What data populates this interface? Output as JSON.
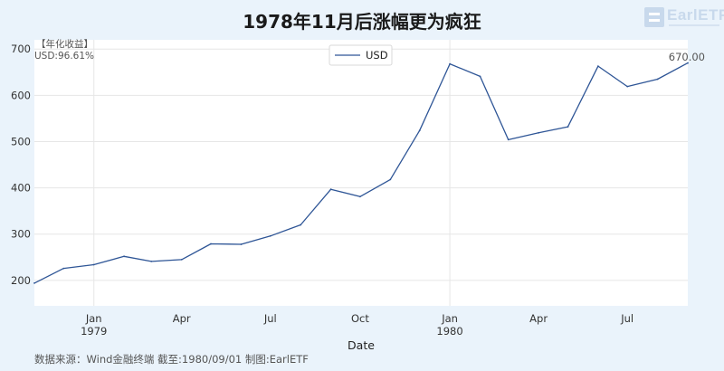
{
  "title": "1978年11月后涨幅更为疯狂",
  "logo_text": "EarlETF",
  "source_note": "数据来源：Wind金融终端 截至:1980/09/01 制图:EarlETF",
  "colors": {
    "line": "#2e5596",
    "background": "#eaf3fb",
    "plot_bg": "#ffffff"
  },
  "chart_data": {
    "type": "line",
    "title": "1978年11月后涨幅更为疯狂",
    "xlabel": "Date",
    "ylabel": "",
    "ylim": [
      145,
      720
    ],
    "yticks": [
      200,
      300,
      400,
      500,
      600,
      700
    ],
    "xlim": [
      "1978-11-01",
      "1980-09-01"
    ],
    "xticks": [
      {
        "date": "1979-01-01",
        "label": "Jan",
        "sublabel": "1979"
      },
      {
        "date": "1979-04-01",
        "label": "Apr",
        "sublabel": ""
      },
      {
        "date": "1979-07-01",
        "label": "Jul",
        "sublabel": ""
      },
      {
        "date": "1979-10-01",
        "label": "Oct",
        "sublabel": ""
      },
      {
        "date": "1980-01-01",
        "label": "Jan",
        "sublabel": "1980"
      },
      {
        "date": "1980-04-01",
        "label": "Apr",
        "sublabel": ""
      },
      {
        "date": "1980-07-01",
        "label": "Jul",
        "sublabel": ""
      }
    ],
    "grid": true,
    "legend": "top-center",
    "annotation_box": {
      "line1": "【年化收益】",
      "line2": "USD:96.61%"
    },
    "end_label": "670.00",
    "series": [
      {
        "name": "USD",
        "x": [
          "1978-11-01",
          "1978-12-01",
          "1979-01-01",
          "1979-02-01",
          "1979-03-01",
          "1979-04-01",
          "1979-05-01",
          "1979-06-01",
          "1979-07-01",
          "1979-08-01",
          "1979-09-01",
          "1979-10-01",
          "1979-11-01",
          "1979-12-01",
          "1980-01-01",
          "1980-02-01",
          "1980-03-01",
          "1980-04-01",
          "1980-05-01",
          "1980-06-01",
          "1980-07-01",
          "1980-08-01",
          "1980-09-01"
        ],
        "values": [
          194,
          226,
          234,
          252,
          241,
          245,
          279,
          278,
          296,
          320,
          397,
          381,
          418,
          524,
          668,
          641,
          504,
          519,
          532,
          663,
          619,
          635,
          670
        ]
      }
    ]
  }
}
